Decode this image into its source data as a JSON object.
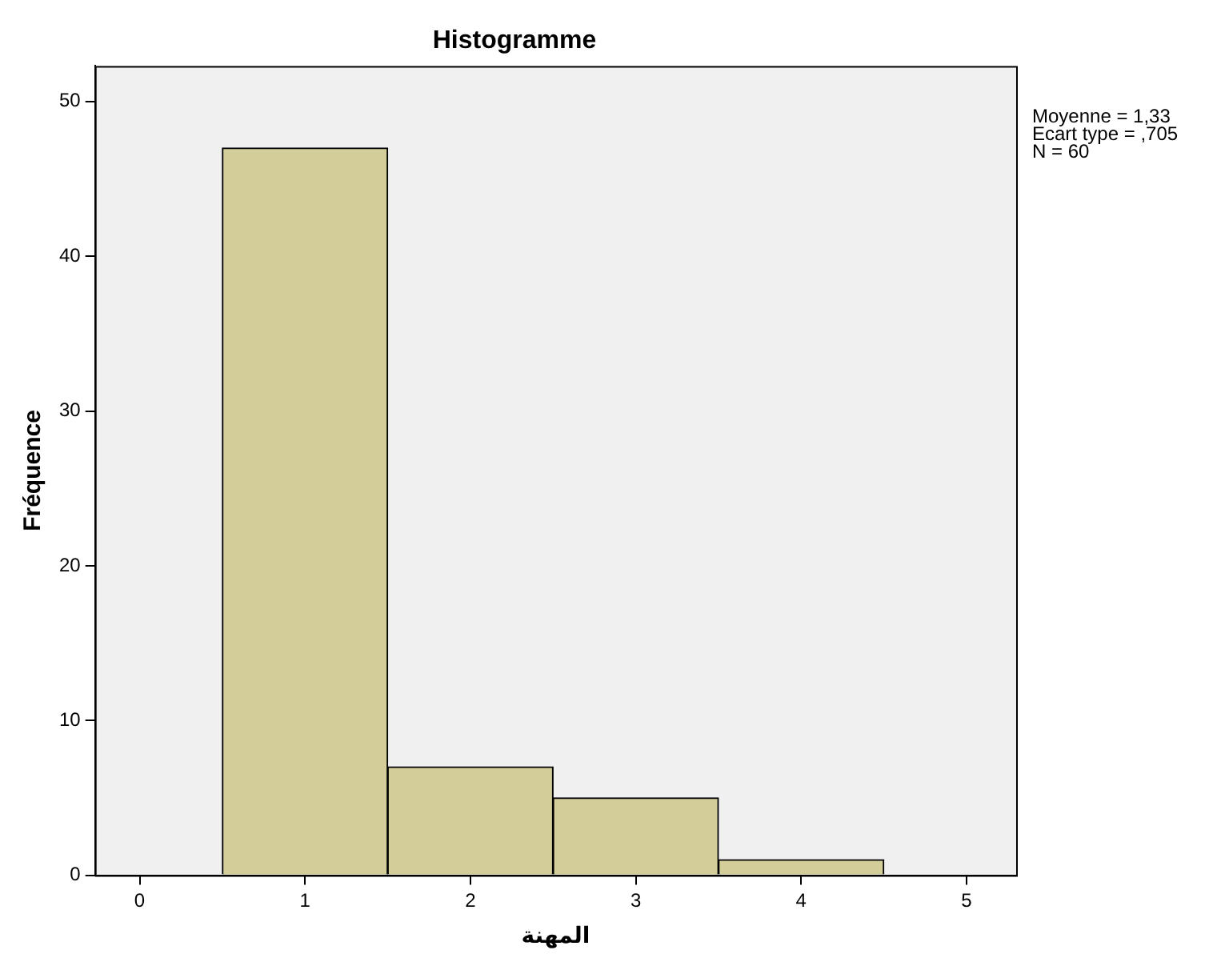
{
  "chart_data": {
    "type": "histogram",
    "title": "Histogramme",
    "xlabel": "المهنة",
    "ylabel": "Fréquence",
    "bins": [
      0.5,
      1.5,
      2.5,
      3.5,
      4.5
    ],
    "values": [
      47,
      7,
      5,
      1
    ],
    "color": "#d3ce99",
    "xlim": [
      -0.27,
      5.3
    ],
    "xticks": [
      0,
      1,
      2,
      3,
      4,
      5
    ],
    "ylim": [
      0,
      52.3
    ],
    "yticks": [
      0,
      10,
      20,
      30,
      40,
      50
    ],
    "grid": false,
    "annotations": [
      "Moyenne = 1,33",
      "Ecart type = ,705",
      "N = 60"
    ]
  }
}
